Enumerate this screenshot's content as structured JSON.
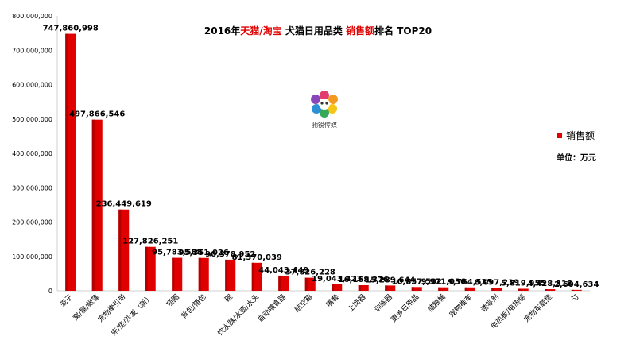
{
  "title": {
    "pre": "2016年",
    "hl1": "天猫/淘宝",
    "mid": " 犬猫日用品类 ",
    "hl2": "销售额",
    "post": "排名 TOP20"
  },
  "legend_label": "销售额",
  "unit_label": "单位：万元",
  "logo_text": "驰锐传媒",
  "colors": {
    "bar": "#e00000",
    "bar_dark": "#b30000",
    "highlight": "#e00000"
  },
  "chart_data": {
    "type": "bar",
    "title": "2016年天猫/淘宝 犬猫日用品类 销售额排名 TOP20",
    "xlabel": "",
    "ylabel": "",
    "ylim": [
      0,
      800000000
    ],
    "yticks": [
      "0",
      "100,000,000",
      "200,000,000",
      "300,000,000",
      "400,000,000",
      "500,000,000",
      "600,000,000",
      "700,000,000",
      "800,000,000"
    ],
    "grid": false,
    "legend_position": "right",
    "categories": [
      "笼子",
      "窝/屋/帐篷",
      "宠物牵引带",
      "床/垫/沙发（新）",
      "项圈",
      "背包/箱包",
      "碗",
      "饮水器/水壶/水头",
      "自动喂食器",
      "航空箱",
      "嘴套",
      "上岗器",
      "训练器",
      "更多日用品",
      "储粮桶",
      "宠物推车",
      "诱导剂",
      "电热板/电热毯",
      "宠物车载垫",
      "勺"
    ],
    "values": [
      747860998,
      497866546,
      236449619,
      127826251,
      95783588,
      95351026,
      90378952,
      81370039,
      44043449,
      37826228,
      19043423,
      16168376,
      15289644,
      10857502,
      9971036,
      9764535,
      8097239,
      5819955,
      4428318,
      2604634
    ],
    "value_labels": [
      "747,860,998",
      "497,866,546",
      "236,449,619",
      "127,826,251",
      "95,783,588",
      "95,351,026",
      "90,378,952",
      "81,370,039",
      "44,043,449",
      "37,826,228",
      "19,043,423",
      "16,168,376",
      "15,289,644",
      "10,857,502",
      "9,971,036",
      "9,764,535",
      "8,097,239",
      "5,819,955",
      "4,428,318",
      "2,604,634"
    ],
    "series": [
      {
        "name": "销售额"
      }
    ]
  }
}
